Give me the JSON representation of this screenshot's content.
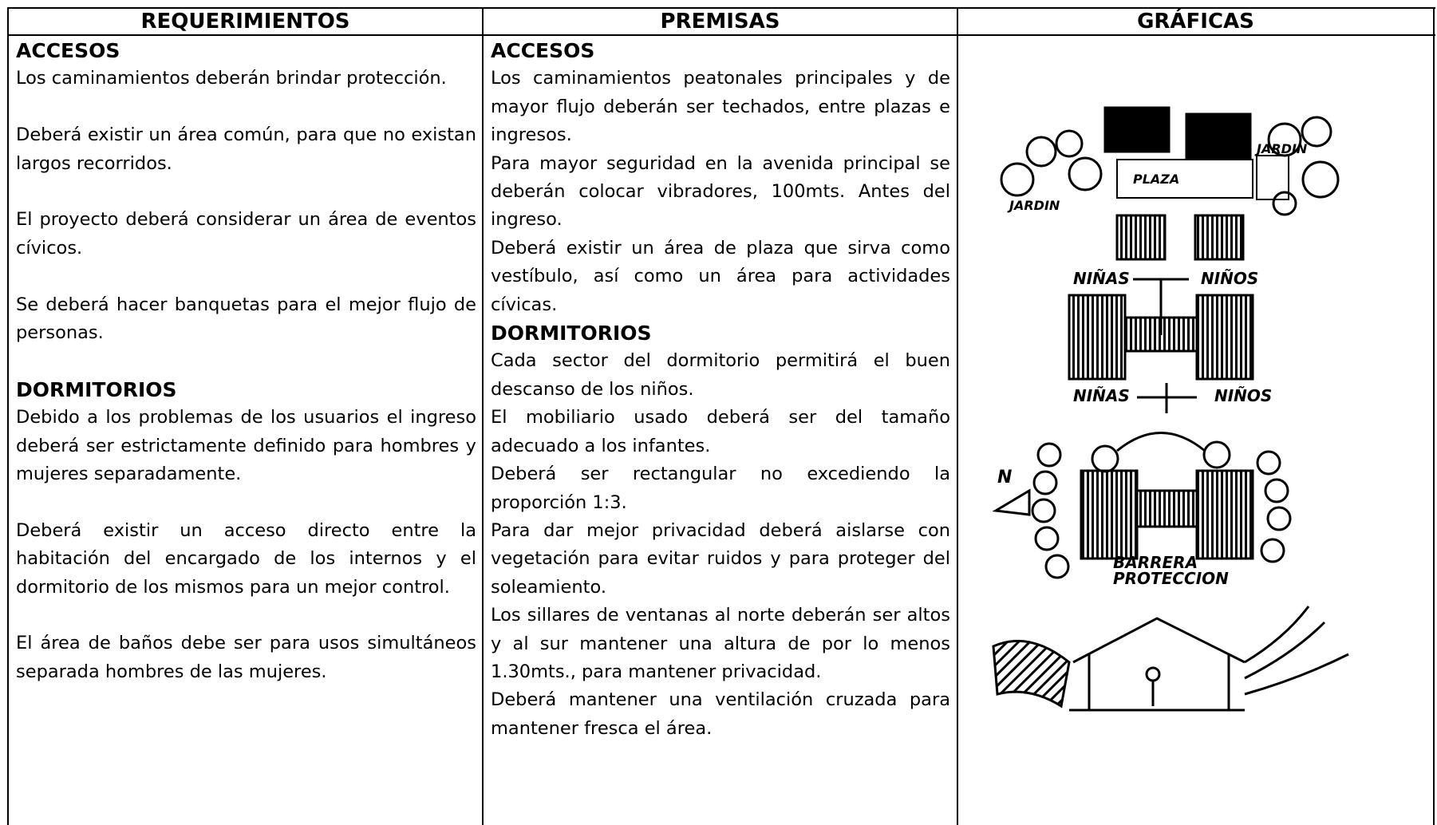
{
  "table": {
    "headers": [
      "REQUERIMIENTOS",
      "PREMISAS",
      "GRÁFICAS"
    ],
    "requerimientos": [
      {
        "title": "ACCESOS",
        "paragraphs": [
          "Los caminamientos deberán brindar protección.",
          "Deberá existir un área común, para que no existan largos recorridos.",
          "El proyecto deberá considerar un área de eventos cívicos.",
          "Se deberá hacer banquetas para el mejor flujo de personas."
        ]
      },
      {
        "title": "DORMITORIOS",
        "paragraphs": [
          "Debido a los problemas de los usuarios el ingreso deberá ser estrictamente definido para hombres y mujeres separadamente.",
          "Deberá existir un acceso directo entre la habitación del encargado de los internos y el dormitorio de los mismos para un mejor control.",
          "El área de baños debe ser para usos simultáneos separada hombres de las mujeres."
        ]
      }
    ],
    "premisas": [
      {
        "title": "ACCESOS",
        "paragraphs": [
          "Los caminamientos peatonales principales y de mayor flujo deberán ser techados, entre plazas e ingresos.",
          "Para mayor seguridad en la avenida principal se deberán colocar vibradores, 100mts. Antes del ingreso.",
          "Deberá existir un área de plaza que sirva como vestíbulo, así como un área para actividades cívicas."
        ]
      },
      {
        "title": "DORMITORIOS",
        "paragraphs": [
          "Cada sector del dormitorio permitirá el buen descanso de los niños.",
          "El mobiliario usado deberá ser del tamaño adecuado a los infantes.",
          "Deberá ser rectangular no excediendo la proporción 1:3.",
          "Para dar mejor privacidad deberá aislarse con vegetación para evitar ruidos y para proteger del soleamiento.",
          "Los sillares de ventanas al norte deberán ser altos y al sur mantener una altura de por lo menos 1.30mts., para mantener privacidad.",
          "Deberá mantener una ventilación cruzada para mantener fresca el área."
        ]
      }
    ]
  },
  "graphics": {
    "labels": [
      "JARDIN",
      "PLAZA",
      "JARDIN",
      "NIÑAS",
      "NIÑOS",
      "NIÑAS",
      "NIÑOS",
      "N",
      "BARRERA",
      "PROTECCION"
    ]
  }
}
